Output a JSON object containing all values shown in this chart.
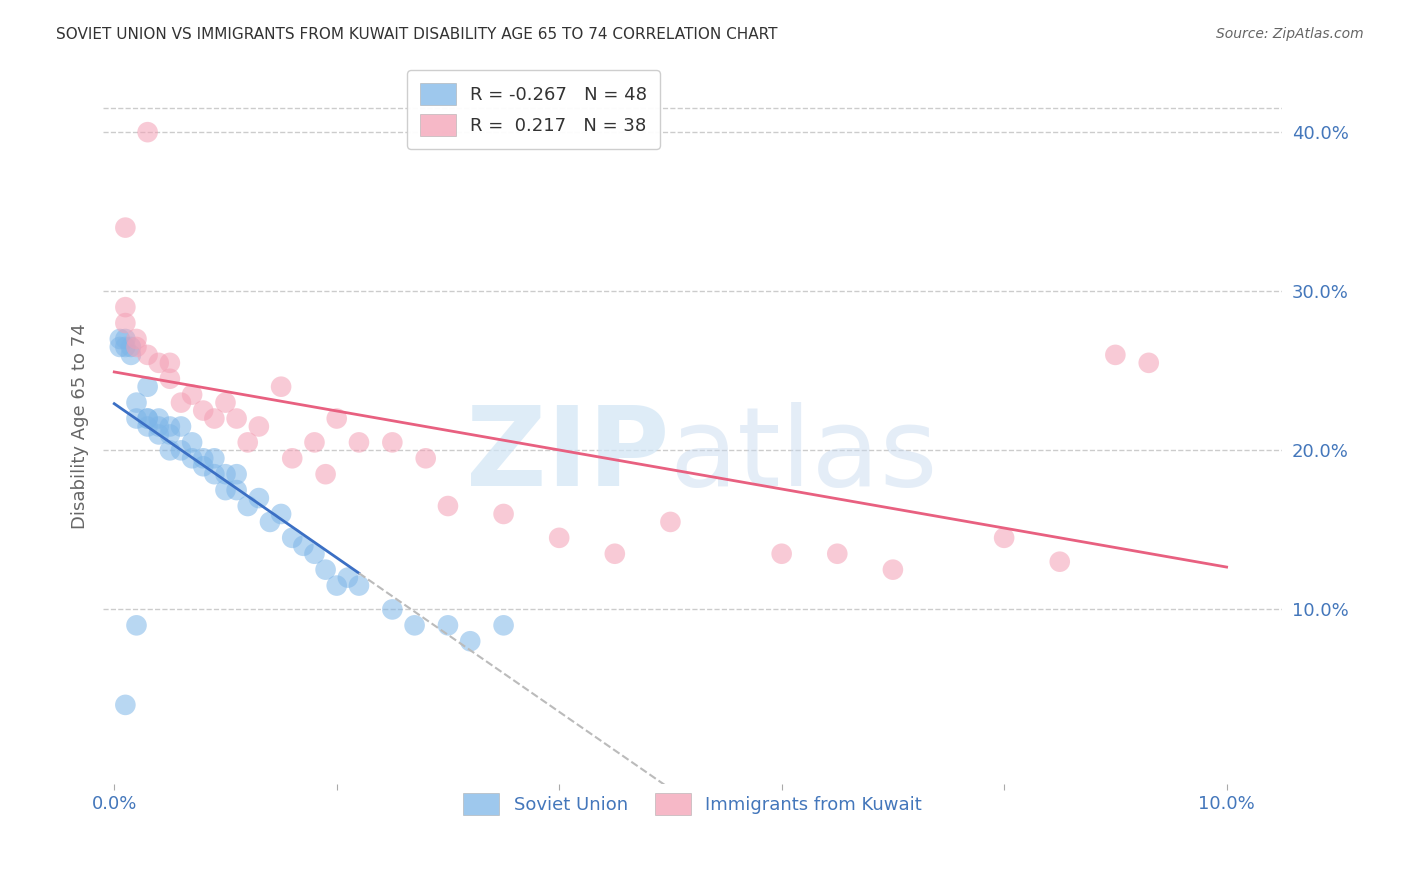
{
  "title": "SOVIET UNION VS IMMIGRANTS FROM KUWAIT DISABILITY AGE 65 TO 74 CORRELATION CHART",
  "source": "Source: ZipAtlas.com",
  "ylabel": "Disability Age 65 to 74",
  "legend_r1": "R = -0.267",
  "legend_n1": "N = 48",
  "legend_r2": "R =  0.217",
  "legend_n2": "N = 38",
  "soviet_color": "#7EB6E8",
  "kuwait_color": "#F4A0B5",
  "soviet_line_color": "#3B6FC4",
  "kuwait_line_color": "#E86080",
  "soviet_points_x": [
    0.0005,
    0.0005,
    0.001,
    0.001,
    0.001,
    0.0015,
    0.0015,
    0.002,
    0.002,
    0.002,
    0.003,
    0.003,
    0.003,
    0.003,
    0.004,
    0.004,
    0.004,
    0.005,
    0.005,
    0.005,
    0.006,
    0.006,
    0.007,
    0.007,
    0.008,
    0.008,
    0.009,
    0.009,
    0.01,
    0.01,
    0.011,
    0.011,
    0.012,
    0.013,
    0.014,
    0.015,
    0.016,
    0.017,
    0.018,
    0.019,
    0.02,
    0.021,
    0.022,
    0.025,
    0.027,
    0.03,
    0.032,
    0.035
  ],
  "soviet_points_y": [
    0.27,
    0.265,
    0.27,
    0.265,
    0.04,
    0.265,
    0.26,
    0.22,
    0.23,
    0.09,
    0.22,
    0.22,
    0.215,
    0.24,
    0.22,
    0.215,
    0.21,
    0.21,
    0.2,
    0.215,
    0.2,
    0.215,
    0.195,
    0.205,
    0.19,
    0.195,
    0.185,
    0.195,
    0.175,
    0.185,
    0.175,
    0.185,
    0.165,
    0.17,
    0.155,
    0.16,
    0.145,
    0.14,
    0.135,
    0.125,
    0.115,
    0.12,
    0.115,
    0.1,
    0.09,
    0.09,
    0.08,
    0.09
  ],
  "kuwait_points_x": [
    0.001,
    0.001,
    0.002,
    0.003,
    0.004,
    0.005,
    0.005,
    0.006,
    0.007,
    0.008,
    0.009,
    0.01,
    0.011,
    0.012,
    0.013,
    0.015,
    0.016,
    0.018,
    0.019,
    0.02,
    0.022,
    0.025,
    0.028,
    0.03,
    0.035,
    0.04,
    0.045,
    0.05,
    0.06,
    0.065,
    0.07,
    0.08,
    0.085,
    0.09,
    0.093,
    0.001,
    0.002,
    0.003
  ],
  "kuwait_points_y": [
    0.29,
    0.28,
    0.265,
    0.26,
    0.255,
    0.245,
    0.255,
    0.23,
    0.235,
    0.225,
    0.22,
    0.23,
    0.22,
    0.205,
    0.215,
    0.24,
    0.195,
    0.205,
    0.185,
    0.22,
    0.205,
    0.205,
    0.195,
    0.165,
    0.16,
    0.145,
    0.135,
    0.155,
    0.135,
    0.135,
    0.125,
    0.145,
    0.13,
    0.26,
    0.255,
    0.34,
    0.27,
    0.4
  ],
  "bg_color": "#FFFFFF",
  "grid_color": "#CCCCCC",
  "title_color": "#333333",
  "axis_color": "#4477BB"
}
